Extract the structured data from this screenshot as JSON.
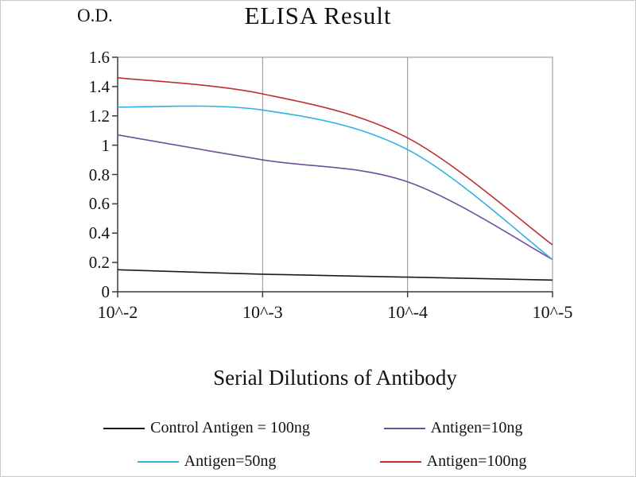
{
  "chart_data": {
    "type": "line",
    "title": "ELISA Result",
    "ylabel": "O.D.",
    "xlabel": "Serial Dilutions of Antibody",
    "categories": [
      "10^-2",
      "10^-3",
      "10^-4",
      "10^-5"
    ],
    "ylim": [
      0,
      1.6
    ],
    "y_ticks": [
      1.6,
      1.4,
      1.2,
      1,
      0.8,
      0.6,
      0.4,
      0.2,
      0
    ],
    "y_tick_labels": [
      "1.6",
      "1.4",
      "1.2",
      "1",
      "0.8",
      "0.6",
      "0.4",
      "0.2",
      "0"
    ],
    "grid": "vertical-only",
    "legend_position": "bottom",
    "smooth_lines": true,
    "colors": {
      "axis": "#3a3a3a",
      "gridline": "#8f8f8f",
      "plot_border": "#8f8f8f"
    },
    "series": [
      {
        "name": "Control Antigen = 100ng",
        "color": "#1a1a1a",
        "values": [
          0.15,
          0.12,
          0.1,
          0.08
        ]
      },
      {
        "name": "Antigen=10ng",
        "color": "#6f4e9c",
        "values": [
          1.07,
          0.9,
          0.75,
          0.22
        ]
      },
      {
        "name": "Antigen=50ng",
        "color": "#31b0e0",
        "values": [
          1.26,
          1.24,
          0.97,
          0.22
        ]
      },
      {
        "name": "Antigen=100ng",
        "color": "#be2f2f",
        "values": [
          1.46,
          1.35,
          1.05,
          0.32
        ]
      }
    ]
  }
}
